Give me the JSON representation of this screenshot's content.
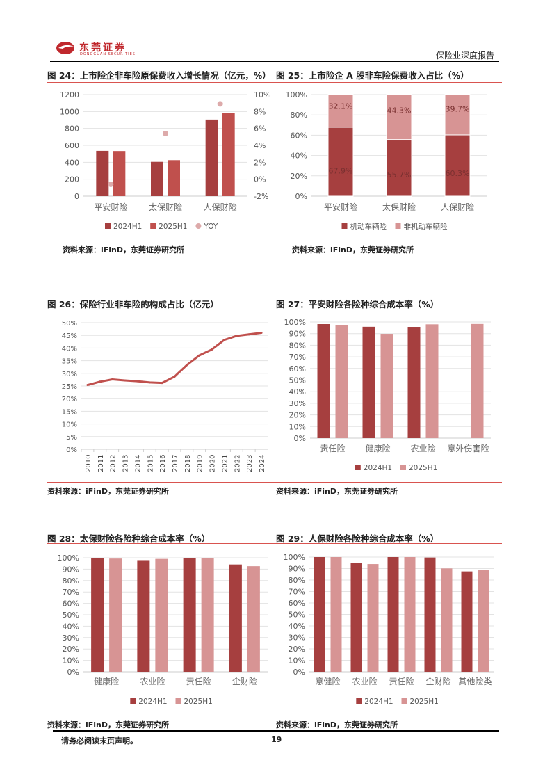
{
  "header": {
    "logo_text": "东莞证券",
    "logo_sub": "DONGGUAN SECURITIES",
    "report_type": "保险业深度报告"
  },
  "footer": {
    "disclaimer": "请务必阅读末页声明。",
    "page_number": "19"
  },
  "colors": {
    "dark": "#A63F3F",
    "mid": "#C0504D",
    "light": "#D79494",
    "yoy": "#DDAAAA",
    "line": "#C0504D",
    "grid": "#E3E3E3",
    "rule": "#D9534F"
  },
  "figures": [
    {
      "title": "图 24：上市险企非车险原保费收入增长情况（亿元，%）",
      "source": "资料来源：iFinD，东莞证券研究所"
    },
    {
      "title": "图 25：上市险企 A 股非车险保费收入占比（%）",
      "source": "资料来源：iFinD，东莞证券研究所"
    },
    {
      "title": "图 26：保险行业非车险的构成占比（亿元）",
      "source": "资料来源：iFinD，东莞证券研究所"
    },
    {
      "title": "图 27：平安财险各险种综合成本率（%）",
      "source": "资料来源：iFinD，东莞证券研究所"
    },
    {
      "title": "图 28：太保财险各险种综合成本率（%）",
      "source": "资料来源：iFinD，东莞证券研究所"
    },
    {
      "title": "图 29：人保财险各险种综合成本率（%）",
      "source": "资料来源：iFinD，东莞证券研究所"
    }
  ],
  "chart_data": [
    {
      "type": "bar",
      "categories": [
        "平安财险",
        "太保财险",
        "人保财险"
      ],
      "ylim": [
        0,
        1200
      ],
      "yticks": [
        0,
        200,
        400,
        600,
        800,
        1000,
        1200
      ],
      "y2lim": [
        -2,
        10
      ],
      "y2ticks": [
        "-2%",
        "0%",
        "2%",
        "4%",
        "6%",
        "8%",
        "10%"
      ],
      "grid": true,
      "legend": "bottom",
      "series": [
        {
          "name": "2024H1",
          "values": [
            535,
            405,
            905
          ]
        },
        {
          "name": "2025H1",
          "values": [
            533,
            425,
            985
          ]
        },
        {
          "name": "YOY",
          "axis": "right",
          "kind": "scatter",
          "values": [
            -0.6,
            5.4,
            8.9
          ]
        }
      ]
    },
    {
      "type": "bar",
      "stacked": true,
      "categories": [
        "平安财险",
        "太保财险",
        "人保财险"
      ],
      "ylim": [
        0,
        100
      ],
      "yticks": [
        "0%",
        "20%",
        "40%",
        "60%",
        "80%",
        "100%"
      ],
      "grid": true,
      "legend": "bottom",
      "series": [
        {
          "name": "机动车辆险",
          "values": [
            67.9,
            55.7,
            60.3
          ],
          "labels": [
            "67.9%",
            "55.7%",
            "60.3%"
          ]
        },
        {
          "name": "非机动车辆险",
          "values": [
            32.1,
            44.3,
            39.7
          ],
          "labels": [
            "32.1%",
            "44.3%",
            "39.7%"
          ]
        }
      ]
    },
    {
      "type": "line",
      "categories": [
        "2010",
        "2011",
        "2012",
        "2013",
        "2014",
        "2015",
        "2016",
        "2017",
        "2018",
        "2019",
        "2020",
        "2021",
        "2022",
        "2023",
        "2024"
      ],
      "ylim": [
        0,
        50
      ],
      "yticks": [
        "0%",
        "5%",
        "10%",
        "15%",
        "20%",
        "25%",
        "30%",
        "35%",
        "40%",
        "45%",
        "50%"
      ],
      "grid": true,
      "series": [
        {
          "values": [
            25.4,
            26.7,
            27.6,
            27.2,
            26.9,
            26.4,
            26.2,
            28.7,
            33.3,
            37.1,
            39.4,
            43.2,
            44.8,
            45.4,
            46.0
          ]
        }
      ]
    },
    {
      "type": "bar",
      "categories": [
        "责任险",
        "健康险",
        "农业险",
        "意外伤害险"
      ],
      "ylim": [
        0,
        100
      ],
      "yticks": [
        "0%",
        "10%",
        "20%",
        "30%",
        "40%",
        "50%",
        "60%",
        "70%",
        "80%",
        "90%",
        "100%"
      ],
      "grid": true,
      "legend": "bottom",
      "series": [
        {
          "name": "2024H1",
          "values": [
            98.2,
            95.9,
            95.8,
            null
          ]
        },
        {
          "name": "2025H1",
          "values": [
            97.5,
            89.8,
            98.0,
            98.3
          ]
        }
      ]
    },
    {
      "type": "bar",
      "categories": [
        "健康险",
        "农业险",
        "责任险",
        "企财险"
      ],
      "ylim": [
        0,
        100
      ],
      "yticks": [
        "0%",
        "10%",
        "20%",
        "30%",
        "40%",
        "50%",
        "60%",
        "70%",
        "80%",
        "90%",
        "100%"
      ],
      "grid": true,
      "legend": "bottom",
      "series": [
        {
          "name": "2024H1",
          "values": [
            100.2,
            97.9,
            99.6,
            94.1
          ]
        },
        {
          "name": "2025H1",
          "values": [
            99.3,
            99.0,
            99.6,
            92.6
          ]
        }
      ]
    },
    {
      "type": "bar",
      "categories": [
        "意健险",
        "农业险",
        "责任险",
        "企财险",
        "其他险类"
      ],
      "ylim": [
        0,
        100
      ],
      "yticks": [
        "0%",
        "10%",
        "20%",
        "30%",
        "40%",
        "50%",
        "60%",
        "70%",
        "80%",
        "90%",
        "100%"
      ],
      "grid": true,
      "legend": "bottom",
      "series": [
        {
          "name": "2024H1",
          "values": [
            100.3,
            94.8,
            100.3,
            99.6,
            87.5
          ]
        },
        {
          "name": "2025H1",
          "values": [
            100.3,
            93.9,
            100.3,
            90.1,
            88.6
          ]
        }
      ]
    }
  ]
}
